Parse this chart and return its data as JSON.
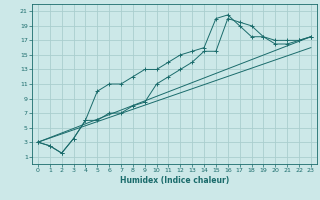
{
  "xlabel": "Humidex (Indice chaleur)",
  "ylabel": "",
  "bg_color": "#cce8e8",
  "grid_color": "#aacece",
  "line_color": "#1a6b6b",
  "xlim": [
    -0.5,
    23.5
  ],
  "ylim": [
    0,
    22
  ],
  "xticks": [
    0,
    1,
    2,
    3,
    4,
    5,
    6,
    7,
    8,
    9,
    10,
    11,
    12,
    13,
    14,
    15,
    16,
    17,
    18,
    19,
    20,
    21,
    22,
    23
  ],
  "yticks": [
    1,
    3,
    5,
    7,
    9,
    11,
    13,
    15,
    17,
    19,
    21
  ],
  "series1_x": [
    0,
    1,
    2,
    3,
    4,
    5,
    6,
    7,
    8,
    9,
    10,
    11,
    12,
    13,
    14,
    15,
    16,
    17,
    18,
    19,
    20,
    21,
    22,
    23
  ],
  "series1_y": [
    3,
    2.5,
    1.5,
    3.5,
    6,
    6,
    7,
    7,
    8,
    8.5,
    11,
    12,
    13,
    14,
    15.5,
    15.5,
    20,
    19.5,
    19,
    17.5,
    17,
    17,
    17,
    17.5
  ],
  "series2_x": [
    0,
    1,
    2,
    3,
    4,
    5,
    6,
    7,
    8,
    9,
    10,
    11,
    12,
    13,
    14,
    15,
    16,
    17,
    18,
    19,
    20,
    21,
    22,
    23
  ],
  "series2_y": [
    3,
    2.5,
    1.5,
    3.5,
    6,
    10,
    11,
    11,
    12,
    13,
    13,
    14,
    15,
    15.5,
    16,
    20,
    20.5,
    19,
    17.5,
    17.5,
    16.5,
    16.5,
    17,
    17.5
  ],
  "series3_x": [
    0,
    23
  ],
  "series3_y": [
    3,
    17.5
  ],
  "series4_x": [
    0,
    23
  ],
  "series4_y": [
    3,
    16
  ]
}
